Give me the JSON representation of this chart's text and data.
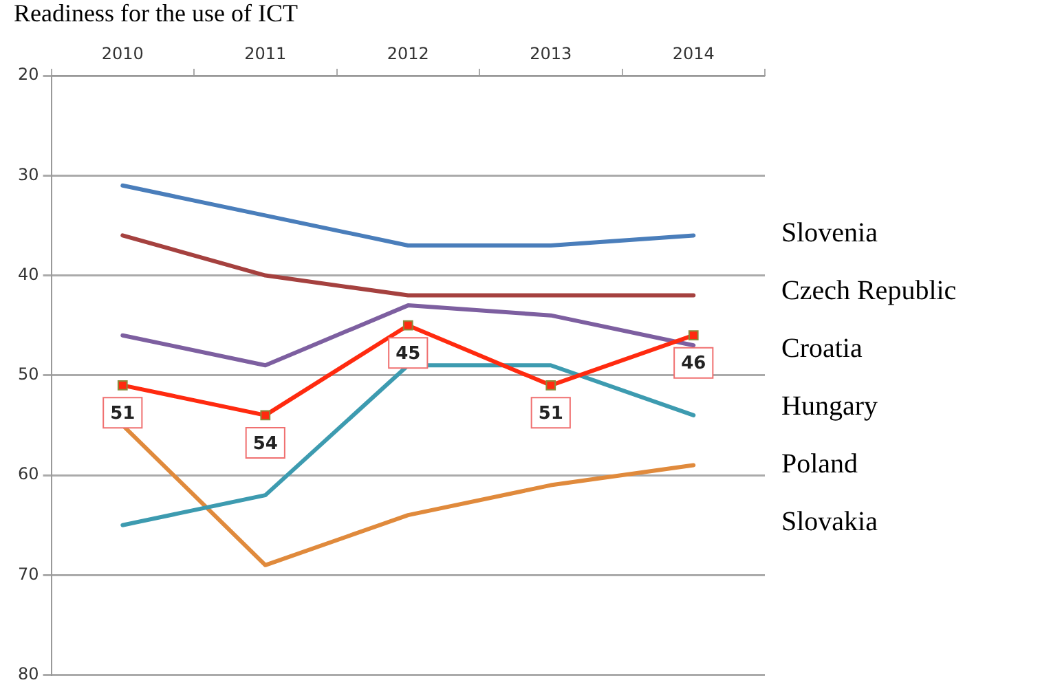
{
  "chart_data": {
    "type": "line",
    "title": "Readiness for the use of ICT",
    "categories": [
      "2010",
      "2011",
      "2012",
      "2013",
      "2014"
    ],
    "series": [
      {
        "name": "Slovenia",
        "color": "#4a7ebb",
        "values": [
          31,
          34,
          37,
          37,
          36
        ],
        "marker": "none"
      },
      {
        "name": "Czech Republic",
        "color": "#a5413f",
        "values": [
          36,
          40,
          42,
          42,
          42
        ],
        "marker": "none"
      },
      {
        "name": "Croatia",
        "color": "#ff2a0f",
        "values": [
          51,
          54,
          45,
          51,
          46
        ],
        "marker": "square",
        "value_labels": [
          "51",
          "54",
          "45",
          "51",
          "46"
        ]
      },
      {
        "name": "Hungary",
        "color": "#7d5fa0",
        "values": [
          46,
          49,
          43,
          44,
          47
        ],
        "marker": "none"
      },
      {
        "name": "Poland",
        "color": "#3d9bb0",
        "values": [
          65,
          62,
          49,
          49,
          54
        ],
        "marker": "none"
      },
      {
        "name": "Slovakia",
        "color": "#e08a3c",
        "values": [
          55,
          69,
          64,
          61,
          59
        ],
        "marker": "none"
      }
    ],
    "ylim": [
      80,
      20
    ],
    "yticks": [
      20,
      30,
      40,
      50,
      60,
      70,
      80
    ],
    "grid": "y",
    "legend": "right"
  }
}
